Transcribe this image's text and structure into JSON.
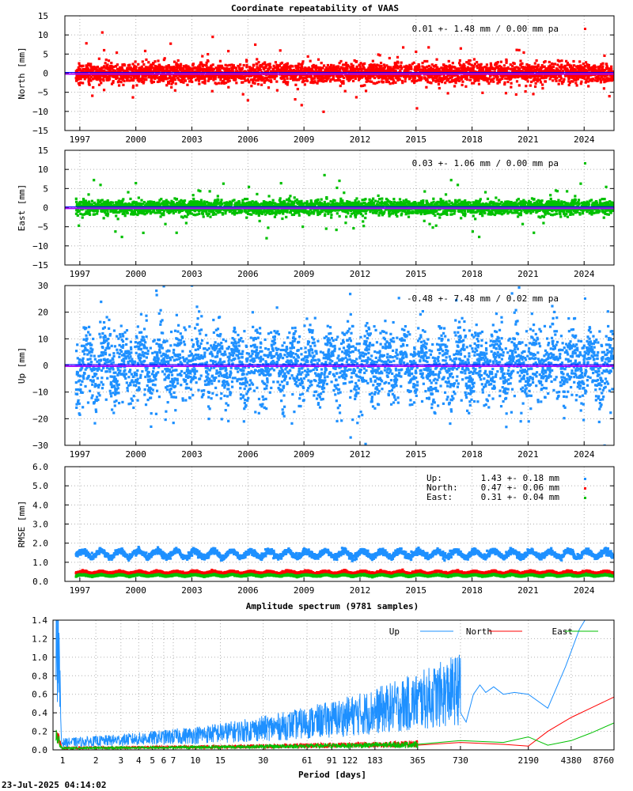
{
  "title": "Coordinate repeatability of VAAS",
  "footer_timestamp": "23-Jul-2025 04:14:02",
  "colors": {
    "north": "#ff0000",
    "east": "#00c000",
    "up": "#1e90ff",
    "mean": "#a000ff",
    "trend": "#0000ff",
    "rmse_north": "#ff0000",
    "rmse_east": "#00c000",
    "rmse_up": "#1e90ff"
  },
  "time_axis": {
    "xlim": [
      1996.2,
      2025.6
    ],
    "ticks": [
      "1997",
      "2000",
      "2003",
      "2006",
      "2009",
      "2012",
      "2015",
      "2018",
      "2021",
      "2024"
    ]
  },
  "chart_data": [
    {
      "type": "scatter",
      "id": "north",
      "ylabel": "North [mm]",
      "ylim": [
        -15,
        15
      ],
      "yticks": [
        "15",
        "10",
        "5",
        "0",
        "−5",
        "−10",
        "−15"
      ],
      "legend": "0.01 +- 1.48 mm /  0.00 mm pa",
      "stats": {
        "mean": 0.01,
        "sigma": 1.48,
        "rate": 0.0
      },
      "outliers": [
        [
          2010.05,
          -10.1
        ],
        [
          2015.05,
          -9.2
        ],
        [
          2015.0,
          5.6
        ],
        [
          2006.0,
          -7.1
        ],
        [
          1998.3,
          -4.4
        ],
        [
          1998.3,
          6.0
        ],
        [
          2000.5,
          5.8
        ]
      ]
    },
    {
      "type": "scatter",
      "id": "east",
      "ylabel": "East [mm]",
      "ylim": [
        -15,
        15
      ],
      "yticks": [
        "15",
        "10",
        "5",
        "0",
        "−5",
        "−10",
        "−15"
      ],
      "legend": "0.03 +- 1.06 mm /  0.00 mm pa",
      "stats": {
        "mean": 0.03,
        "sigma": 1.06,
        "rate": 0.0
      },
      "outliers": [
        [
          2010.1,
          8.5
        ],
        [
          2000.4,
          -6.6
        ],
        [
          2007.0,
          -8.0
        ],
        [
          2000.0,
          6.4
        ],
        [
          2012.2,
          -4.8
        ],
        [
          2015.9,
          -5.2
        ]
      ]
    },
    {
      "type": "scatter",
      "id": "up",
      "ylabel": "Up [mm]",
      "ylim": [
        -31,
        30
      ],
      "yticks": [
        "30",
        "20",
        "10",
        "0",
        "−10",
        "−20",
        "−30"
      ],
      "legend": "-0.48 +- 7.48 mm /  0.02 mm pa",
      "stats": {
        "mean": -0.48,
        "sigma": 7.48,
        "rate": 0.02
      },
      "outliers": [
        [
          2012.3,
          -30.5
        ],
        [
          2003.0,
          30.0
        ],
        [
          2001.1,
          28.0
        ],
        [
          2011.5,
          -28.0
        ],
        [
          2004.6,
          -21.0
        ]
      ]
    },
    {
      "type": "scatter",
      "id": "rmse",
      "ylabel": "RMSE [mm]",
      "ylim": [
        0,
        6
      ],
      "yticks": [
        "6.0",
        "5.0",
        "4.0",
        "3.0",
        "2.0",
        "1.0",
        "0.0"
      ],
      "legend": [
        {
          "name": "Up:",
          "value": "1.43 +- 0.18 mm"
        },
        {
          "name": "North:",
          "value": "0.47 +- 0.06 mm"
        },
        {
          "name": "East:",
          "value": "0.31 +- 0.04 mm"
        }
      ],
      "series": [
        {
          "name": "Up",
          "mean": 1.43,
          "sd": 0.18
        },
        {
          "name": "North",
          "mean": 0.47,
          "sd": 0.06
        },
        {
          "name": "East",
          "mean": 0.31,
          "sd": 0.04
        }
      ]
    },
    {
      "type": "line",
      "id": "spectrum",
      "title": "Amplitude spectrum (9781 samples)",
      "xlabel": "Period [days]",
      "xscale": "log",
      "xlim": [
        1,
        8760
      ],
      "ylim": [
        0,
        1.4
      ],
      "yticks": [
        "1.4",
        "1.2",
        "1.0",
        "0.8",
        "0.6",
        "0.4",
        "0.2",
        "0.0"
      ],
      "xticks": [
        1,
        2,
        3,
        4,
        5,
        6,
        7,
        10,
        15,
        30,
        61,
        91,
        122,
        183,
        365,
        730,
        2190,
        4380,
        8760
      ],
      "xtick_labels": [
        "1",
        "2",
        "3",
        "4",
        "5",
        "6",
        "7",
        "10",
        "15",
        "30",
        "61",
        "91",
        "122",
        "183",
        "365",
        "730",
        "2190",
        "4380",
        "8760"
      ],
      "legend": [
        "Up",
        "North",
        "East"
      ],
      "up_tail": [
        [
          730,
          0.4
        ],
        [
          800,
          0.3
        ],
        [
          900,
          0.6
        ],
        [
          1000,
          0.7
        ],
        [
          1100,
          0.62
        ],
        [
          1250,
          0.68
        ],
        [
          1460,
          0.6
        ],
        [
          1750,
          0.62
        ],
        [
          2190,
          0.6
        ],
        [
          3000,
          0.45
        ],
        [
          4000,
          0.9
        ],
        [
          5000,
          1.3
        ],
        [
          6000,
          1.5
        ]
      ],
      "north_tail": [
        [
          365,
          0.05
        ],
        [
          730,
          0.08
        ],
        [
          1460,
          0.06
        ],
        [
          2190,
          0.04
        ],
        [
          3000,
          0.2
        ],
        [
          4380,
          0.35
        ],
        [
          6000,
          0.45
        ],
        [
          8760,
          0.57
        ]
      ],
      "east_tail": [
        [
          365,
          0.06
        ],
        [
          730,
          0.1
        ],
        [
          1460,
          0.08
        ],
        [
          2190,
          0.14
        ],
        [
          3000,
          0.05
        ],
        [
          4380,
          0.1
        ],
        [
          6000,
          0.18
        ],
        [
          8760,
          0.29
        ]
      ]
    }
  ]
}
